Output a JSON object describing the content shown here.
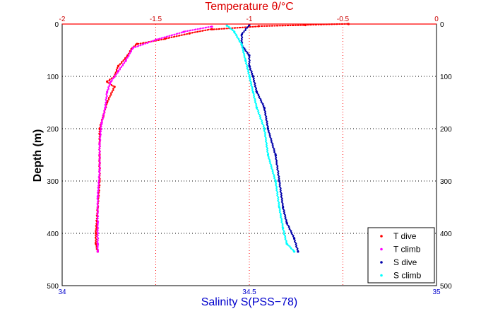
{
  "chart_data": {
    "type": "scatter",
    "top_axis": {
      "label": "Temperature θ/°C",
      "range": [
        -2,
        0
      ],
      "ticks": [
        "-2",
        "-1.5",
        "-1",
        "-0.5",
        "0"
      ],
      "color": "#dd0000"
    },
    "bottom_axis": {
      "label": "Salinity S(PSS−78)",
      "range": [
        34,
        35
      ],
      "ticks": [
        "34",
        "34.5",
        "35"
      ],
      "color": "#0000cc"
    },
    "y_axis": {
      "label": "Depth (m)",
      "range": [
        0,
        500
      ],
      "reversed": true,
      "ticks": [
        "0",
        "100",
        "200",
        "300",
        "400",
        "500"
      ]
    },
    "grid": "dotted",
    "legend_position": "bottom-right",
    "legend": [
      {
        "label": "T dive",
        "color": "#ff0000"
      },
      {
        "label": "T climb",
        "color": "#ff00ff"
      },
      {
        "label": "S dive",
        "color": "#0000aa"
      },
      {
        "label": "S climb",
        "color": "#00ffff"
      }
    ],
    "series": [
      {
        "name": "T dive",
        "axis": "temperature",
        "color": "#ff0000",
        "x": [
          -0.47,
          -0.7,
          -0.95,
          -1.2,
          -1.32,
          -1.45,
          -1.6,
          -1.63,
          -1.65,
          -1.7,
          -1.72,
          -1.76,
          -1.72,
          -1.76,
          -1.78,
          -1.8,
          -1.8,
          -1.8,
          -1.81,
          -1.82,
          -1.82,
          -1.81
        ],
        "y": [
          0,
          2,
          4,
          10,
          18,
          28,
          38,
          48,
          60,
          80,
          100,
          110,
          120,
          150,
          175,
          200,
          250,
          300,
          350,
          400,
          420,
          435
        ]
      },
      {
        "name": "T climb",
        "axis": "temperature",
        "color": "#ff00ff",
        "x": [
          -1.2,
          -1.35,
          -1.5,
          -1.62,
          -1.66,
          -1.7,
          -1.74,
          -1.76,
          -1.77,
          -1.79,
          -1.8,
          -1.8,
          -1.81,
          -1.81,
          -1.81,
          -1.81
        ],
        "y": [
          5,
          15,
          30,
          45,
          70,
          90,
          110,
          130,
          160,
          190,
          230,
          280,
          330,
          380,
          420,
          435
        ]
      },
      {
        "name": "S dive",
        "axis": "salinity",
        "color": "#0000aa",
        "x": [
          34.5,
          34.48,
          34.48,
          34.5,
          34.5,
          34.51,
          34.52,
          34.54,
          34.55,
          34.57,
          34.58,
          34.59,
          34.6,
          34.62,
          34.63
        ],
        "y": [
          2,
          20,
          40,
          60,
          80,
          100,
          130,
          160,
          200,
          250,
          300,
          350,
          380,
          410,
          435
        ]
      },
      {
        "name": "S climb",
        "axis": "salinity",
        "color": "#00ffff",
        "x": [
          34.44,
          34.46,
          34.48,
          34.49,
          34.5,
          34.51,
          34.52,
          34.54,
          34.55,
          34.57,
          34.58,
          34.59,
          34.6,
          34.62
        ],
        "y": [
          3,
          15,
          40,
          70,
          100,
          130,
          160,
          200,
          250,
          300,
          350,
          390,
          420,
          435
        ]
      }
    ]
  }
}
